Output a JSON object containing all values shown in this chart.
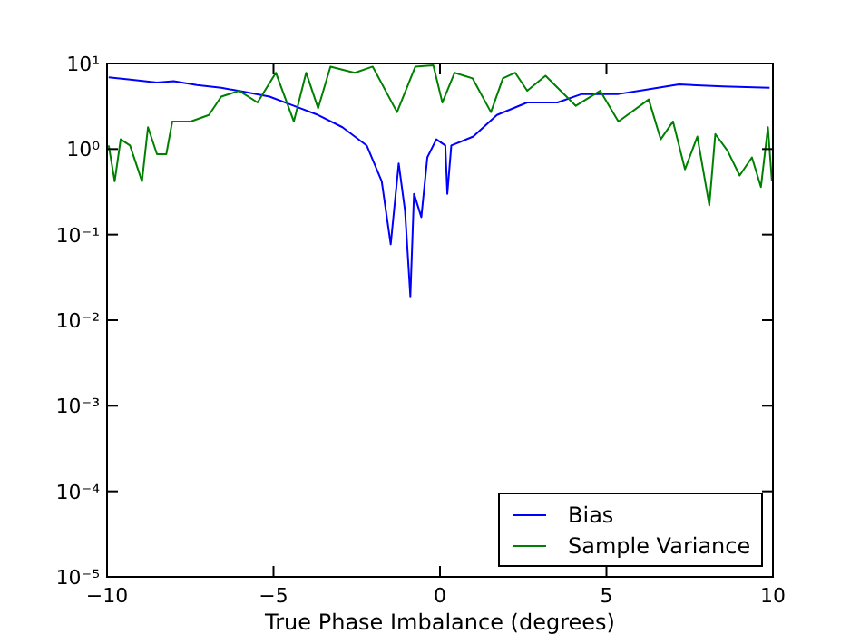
{
  "chart_data": {
    "type": "line",
    "xlabel": "True Phase Imbalance (degrees)",
    "log": "y",
    "xlim": [
      -10,
      10
    ],
    "xticks": [
      {
        "value": -10,
        "label": "−10"
      },
      {
        "value": -5,
        "label": "−5"
      },
      0,
      5,
      10
    ],
    "ylim": [
      1e-05,
      10
    ],
    "yticks": [
      {
        "value": 1e-05,
        "label": "10⁻⁵"
      },
      {
        "value": 0.0001,
        "label": "10⁻⁴"
      },
      {
        "value": 0.001,
        "label": "10⁻³"
      },
      {
        "value": 0.01,
        "label": "10⁻²"
      },
      {
        "value": 0.1,
        "label": "10⁻¹"
      },
      {
        "value": 1,
        "label": "10⁰"
      },
      {
        "value": 10,
        "label": "10¹"
      }
    ],
    "legend": "bottom right",
    "grid": false,
    "series": [
      {
        "name": "Bias",
        "color": "#0000ff",
        "x": [
          -9.95,
          -9.3,
          -8.5,
          -8,
          -7.3,
          -6.57,
          -5.8,
          -5.12,
          -4.39,
          -3.66,
          -2.93,
          -2.2,
          -1.75,
          -1.48,
          -1.24,
          -1.05,
          -0.89,
          -0.78,
          -0.56,
          -0.38,
          -0.11,
          0.16,
          0.22,
          0.34,
          1.0,
          1.71,
          2.62,
          3.53,
          4.26,
          5.36,
          6.0,
          7.18,
          8.5,
          9.9
        ],
        "values": [
          6.9,
          6.5,
          6.0,
          6.2,
          5.6,
          5.2,
          4.6,
          4.1,
          3.2,
          2.5,
          1.8,
          1.1,
          0.42,
          0.077,
          0.68,
          0.19,
          0.019,
          0.3,
          0.16,
          0.8,
          1.3,
          1.1,
          0.3,
          1.1,
          1.4,
          2.5,
          3.5,
          3.5,
          4.4,
          4.4,
          4.8,
          5.7,
          5.4,
          5.2
        ]
      },
      {
        "name": "Sample Variance",
        "color": "#008000",
        "x": [
          -9.95,
          -9.77,
          -9.59,
          -9.31,
          -8.95,
          -8.77,
          -8.5,
          -8.22,
          -8.04,
          -7.49,
          -6.94,
          -6.57,
          -6.03,
          -5.48,
          -4.93,
          -4.39,
          -4.02,
          -3.66,
          -3.29,
          -2.56,
          -2.02,
          -1.29,
          -0.74,
          -0.2,
          0.07,
          0.44,
          0.98,
          1.53,
          1.89,
          2.26,
          2.62,
          3.17,
          4.08,
          4.81,
          5.36,
          6.27,
          6.63,
          7.0,
          7.36,
          7.73,
          8.09,
          8.27,
          8.64,
          9.0,
          9.37,
          9.64,
          9.85,
          9.97
        ],
        "values": [
          1.1,
          0.42,
          1.3,
          1.1,
          0.42,
          1.8,
          0.87,
          0.87,
          2.1,
          2.1,
          2.5,
          4.1,
          4.8,
          3.5,
          7.8,
          2.1,
          7.8,
          3.0,
          9.2,
          7.8,
          9.2,
          2.7,
          9.2,
          9.5,
          3.5,
          7.8,
          6.7,
          2.7,
          6.7,
          7.8,
          4.8,
          7.2,
          3.2,
          4.8,
          2.1,
          3.8,
          1.3,
          2.1,
          0.58,
          1.4,
          0.22,
          1.5,
          0.95,
          0.49,
          0.8,
          0.36,
          1.8,
          0.42
        ]
      }
    ]
  }
}
